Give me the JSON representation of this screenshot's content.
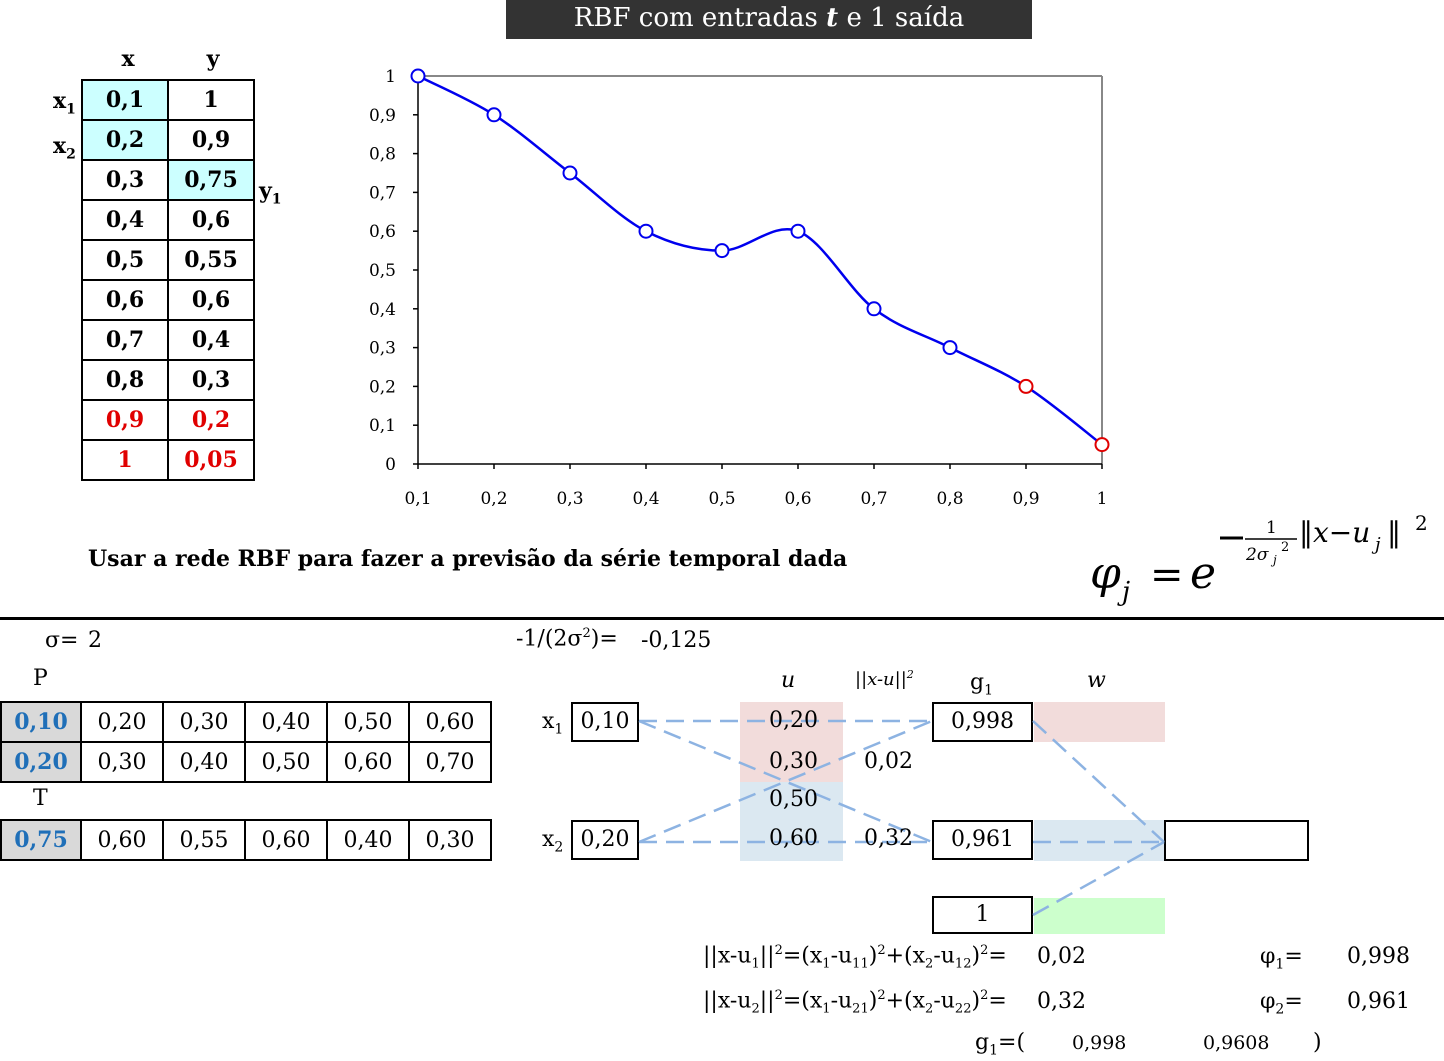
{
  "title": {
    "prefix": "RBF com entradas",
    "var": "t",
    "suffix": "e 1 saída"
  },
  "series_table": {
    "headers": [
      "x",
      "y"
    ],
    "rows": [
      [
        "0,1",
        "1"
      ],
      [
        "0,2",
        "0,9"
      ],
      [
        "0,3",
        "0,75"
      ],
      [
        "0,4",
        "0,6"
      ],
      [
        "0,5",
        "0,55"
      ],
      [
        "0,6",
        "0,6"
      ],
      [
        "0,7",
        "0,4"
      ],
      [
        "0,8",
        "0,3"
      ],
      [
        "0,9",
        "0,2"
      ],
      [
        "1",
        "0,05"
      ]
    ],
    "labels": {
      "x1": "x",
      "x1_sub": "1",
      "x2": "x",
      "x2_sub": "2",
      "y1": "y",
      "y1_sub": "1"
    }
  },
  "chart_data": {
    "type": "line",
    "x": [
      0.1,
      0.2,
      0.3,
      0.4,
      0.5,
      0.6,
      0.7,
      0.8,
      0.9,
      1.0
    ],
    "series": [
      {
        "values": [
          1,
          0.9,
          0.75,
          0.6,
          0.55,
          0.6,
          0.4,
          0.3,
          0.2,
          0.05
        ]
      }
    ],
    "highlighted_points_color": "#e00000",
    "highlighted_points": [
      8,
      9
    ],
    "line_color": "#0000ee",
    "xticks": [
      "0,1",
      "0,2",
      "0,3",
      "0,4",
      "0,5",
      "0,6",
      "0,7",
      "0,8",
      "0,9",
      "1"
    ],
    "yticks": [
      "0",
      "0,1",
      "0,2",
      "0,3",
      "0,4",
      "0,5",
      "0,6",
      "0,7",
      "0,8",
      "0,9",
      "1"
    ],
    "ylim": [
      0,
      1
    ],
    "xlim": [
      0.1,
      1.0
    ],
    "smoothed": true
  },
  "task_text": "Usar a rede RBF para fazer a previsão da série temporal dada",
  "phi_formula": {
    "lhs": "φ",
    "lhs_sub": "j",
    "eq": "=",
    "base": "e"
  },
  "sigma": {
    "label": "σ=",
    "value": "2"
  },
  "coef": {
    "label_a": "-1/(2σ",
    "label_sup": "2",
    "label_b": ")=",
    "value": "-0,125"
  },
  "P": {
    "label": "P",
    "rows": [
      [
        "0,10",
        "0,20",
        "0,30",
        "0,40",
        "0,50",
        "0,60"
      ],
      [
        "0,20",
        "0,30",
        "0,40",
        "0,50",
        "0,60",
        "0,70"
      ]
    ]
  },
  "T": {
    "label": "T",
    "row": [
      "0,75",
      "0,60",
      "0,55",
      "0,60",
      "0,40",
      "0,30"
    ]
  },
  "network": {
    "x1_label": "x",
    "x1_sub": "1",
    "x1_value": "0,10",
    "x2_label": "x",
    "x2_sub": "2",
    "x2_value": "0,20",
    "u_header": "u",
    "dist_header": "||x-u||",
    "dist_sup": "2",
    "g_header": "g",
    "g_sub": "1",
    "w_header": "w",
    "u_values": [
      "0,20",
      "0,30",
      "0,50",
      "0,60"
    ],
    "dist_values": [
      "0,02",
      "0,32"
    ],
    "g_values": [
      "0,998",
      "0,961",
      "1"
    ],
    "output_value": "",
    "colors": {
      "pink": "#f2dcdb",
      "blue": "#dbe8f1",
      "green": "#ccffcc",
      "line": "#8db3e2"
    }
  },
  "formulas": {
    "d1_value": "0,02",
    "d2_value": "0,32",
    "phi1_label": "φ",
    "phi1_sub": "1",
    "phi1_value": "0,998",
    "phi2_label": "φ",
    "phi2_sub": "2",
    "phi2_value": "0,961",
    "g1_label": "g",
    "g1_sub": "1",
    "g1_open": "=(",
    "g1_a": "0,998",
    "g1_b": "0,9608",
    "g1_close": ")"
  }
}
